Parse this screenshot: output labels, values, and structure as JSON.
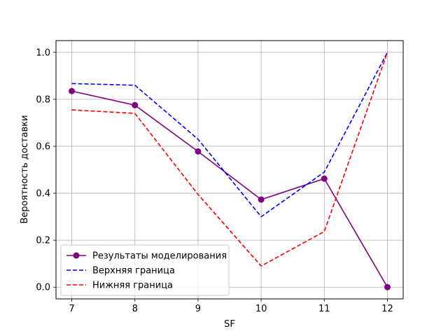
{
  "chart_data": {
    "type": "line",
    "xlabel": "SF",
    "ylabel": "Вероятность доставки",
    "x": [
      7,
      8,
      9,
      10,
      11,
      12
    ],
    "xlim": [
      6.75,
      12.25
    ],
    "ylim": [
      -0.05,
      1.05
    ],
    "xticks": [
      "7",
      "8",
      "9",
      "10",
      "11",
      "12"
    ],
    "yticks": [
      "0.0",
      "0.2",
      "0.4",
      "0.6",
      "0.8",
      "1.0"
    ],
    "grid": true,
    "legend_position": "lower-left",
    "series": [
      {
        "name": "Результаты моделирования",
        "values": [
          0.835,
          0.775,
          0.578,
          0.373,
          0.462,
          0.0
        ],
        "color": "#800080",
        "style": "solid",
        "marker": "circle"
      },
      {
        "name": "Верхняя граница",
        "values": [
          0.867,
          0.86,
          0.63,
          0.3,
          0.49,
          1.0
        ],
        "color": "#0000ff",
        "style": "dashed",
        "marker": "none"
      },
      {
        "name": "Нижняя граница",
        "values": [
          0.755,
          0.74,
          0.395,
          0.09,
          0.237,
          1.0
        ],
        "color": "#ff0000",
        "style": "dashed",
        "marker": "none"
      }
    ]
  }
}
